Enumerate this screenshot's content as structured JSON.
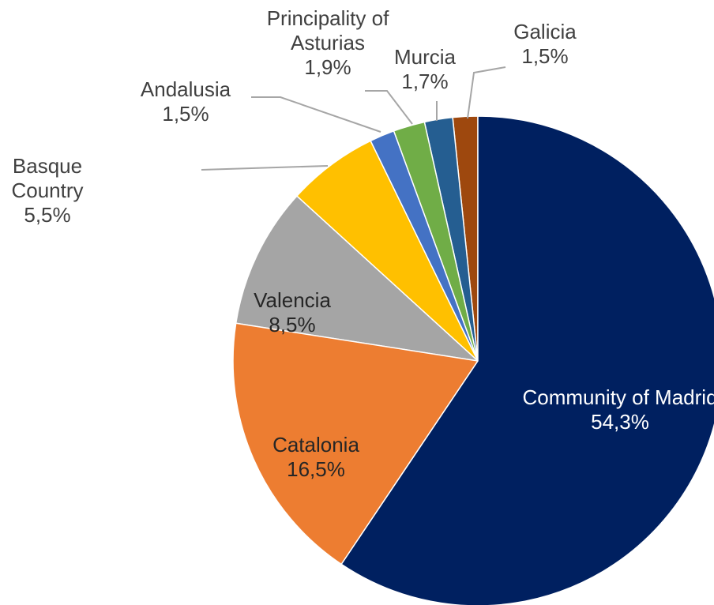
{
  "chart_data": {
    "type": "pie",
    "categories": [
      "Community of Madrid",
      "Catalonia",
      "Valencia",
      "Basque Country",
      "Andalusia",
      "Principality of Asturias",
      "Murcia",
      "Galicia"
    ],
    "values": [
      54.3,
      16.5,
      8.5,
      5.5,
      1.5,
      1.9,
      1.7,
      1.5
    ],
    "value_labels": [
      "54,3%",
      "16,5%",
      "8,5%",
      "5,5%",
      "1,5%",
      "1,9%",
      "1,7%",
      "1,5%"
    ],
    "colors": [
      "#002060",
      "#ED7D31",
      "#A5A5A5",
      "#FFC000",
      "#4472C4",
      "#70AD47",
      "#255E91",
      "#9E480E"
    ]
  }
}
